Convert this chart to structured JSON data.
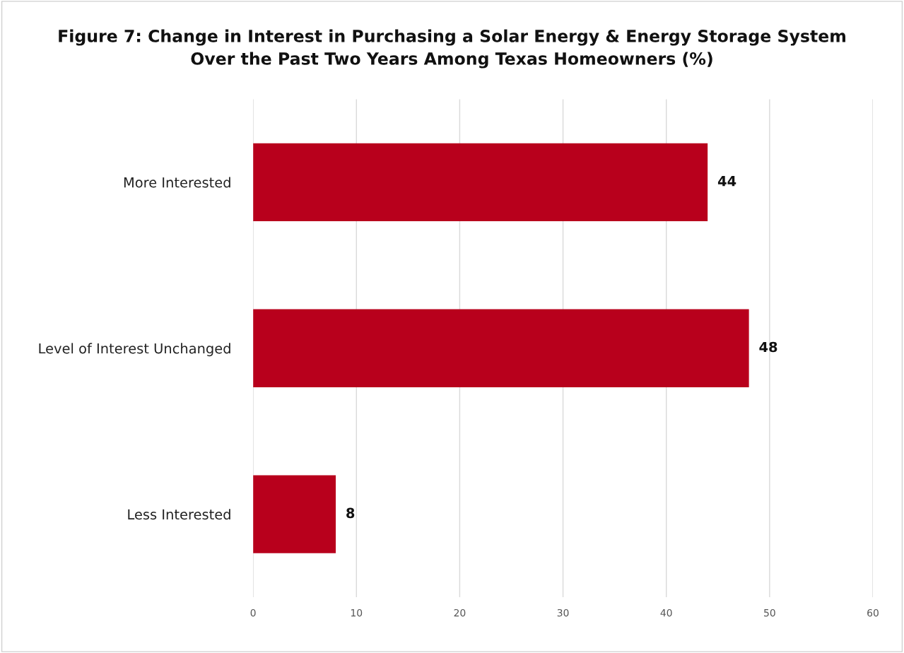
{
  "chart_data": {
    "type": "bar",
    "orientation": "horizontal",
    "title": "Figure 7: Change in Interest in Purchasing a Solar Energy & Energy Storage System\nOver the Past Two Years Among Texas Homeowners (%)",
    "categories": [
      "More Interested",
      "Level of Interest Unchanged",
      "Less Interested"
    ],
    "values": [
      44,
      48,
      8
    ],
    "color": "#b8001c",
    "xlim": [
      0,
      60
    ],
    "xticks": [
      0,
      10,
      20,
      30,
      40,
      50,
      60
    ],
    "grid": "x",
    "data_labels": true
  }
}
